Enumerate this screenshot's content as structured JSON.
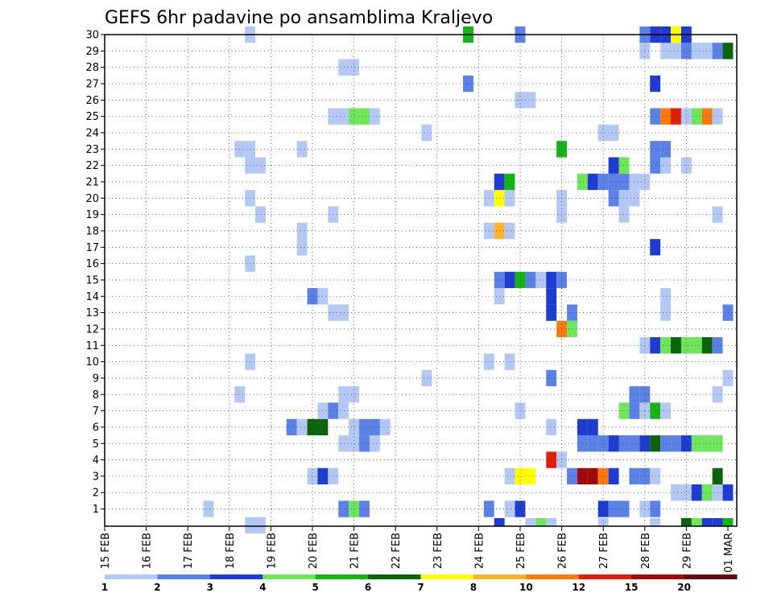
{
  "chart_data": {
    "type": "heatmap",
    "title": "GEFS 6hr padavine po ansamblima Kraljevo",
    "y_ticks": [
      "1",
      "2",
      "3",
      "4",
      "5",
      "6",
      "7",
      "8",
      "9",
      "10",
      "11",
      "12",
      "13",
      "14",
      "15",
      "16",
      "17",
      "18",
      "19",
      "20",
      "21",
      "22",
      "23",
      "24",
      "25",
      "26",
      "27",
      "28",
      "29",
      "30"
    ],
    "x_ticks": [
      "15 FEB",
      "16 FEB",
      "17 FEB",
      "18 FEB",
      "19 FEB",
      "20 FEB",
      "21 FEB",
      "22 FEB",
      "23 FEB",
      "24 FEB",
      "25 FEB",
      "26 FEB",
      "27 FEB",
      "28 FEB",
      "29 FEB",
      "01 MAR"
    ],
    "legend": {
      "labels": [
        "1",
        "2",
        "3",
        "4",
        "5",
        "6",
        "7",
        "8",
        "10",
        "12",
        "15",
        "20"
      ],
      "colors": [
        "#b4c8f5",
        "#5a82e6",
        "#1e3cd2",
        "#6ee65a",
        "#14b414",
        "#0a640a",
        "#ffff00",
        "#ffb428",
        "#ff780a",
        "#e11e0a",
        "#a00a0a",
        "#640a14"
      ]
    },
    "cells": [
      [
        0,
        18.5,
        1
      ],
      [
        0,
        18.75,
        1
      ],
      [
        1,
        17.5,
        1
      ],
      [
        1,
        20.75,
        2
      ],
      [
        1,
        21.0,
        4
      ],
      [
        1,
        21.25,
        2
      ],
      [
        1,
        24.25,
        2
      ],
      [
        1,
        24.75,
        1
      ],
      [
        1,
        25.0,
        3
      ],
      [
        1,
        27.0,
        3
      ],
      [
        1,
        27.25,
        2
      ],
      [
        1,
        27.5,
        2
      ],
      [
        1,
        28.0,
        1
      ],
      [
        1,
        28.25,
        2
      ],
      [
        2,
        28.75,
        1
      ],
      [
        2,
        29.0,
        1
      ],
      [
        2,
        29.25,
        3
      ],
      [
        2,
        29.5,
        4
      ],
      [
        2,
        29.75,
        1
      ],
      [
        2,
        30.0,
        3
      ],
      [
        3,
        20.0,
        1
      ],
      [
        3,
        20.25,
        3
      ],
      [
        3,
        20.5,
        1
      ],
      [
        3,
        24.75,
        1
      ],
      [
        3,
        25.0,
        7
      ],
      [
        3,
        25.25,
        7
      ],
      [
        3,
        26.25,
        2
      ],
      [
        3,
        26.5,
        11
      ],
      [
        3,
        26.75,
        11
      ],
      [
        3,
        27.0,
        9
      ],
      [
        3,
        27.25,
        3
      ],
      [
        3,
        27.75,
        2
      ],
      [
        3,
        28.0,
        2
      ],
      [
        3,
        28.25,
        1
      ],
      [
        3,
        29.75,
        6
      ],
      [
        4,
        25.75,
        10
      ],
      [
        4,
        26.0,
        1
      ],
      [
        5,
        20.75,
        1
      ],
      [
        5,
        21.0,
        1
      ],
      [
        5,
        21.25,
        2
      ],
      [
        5,
        21.5,
        1
      ],
      [
        5,
        26.5,
        2
      ],
      [
        5,
        26.75,
        2
      ],
      [
        5,
        27.0,
        2
      ],
      [
        5,
        27.25,
        3
      ],
      [
        5,
        27.5,
        2
      ],
      [
        5,
        27.75,
        2
      ],
      [
        5,
        28.0,
        3
      ],
      [
        5,
        28.25,
        6
      ],
      [
        5,
        28.5,
        2
      ],
      [
        5,
        28.75,
        2
      ],
      [
        5,
        29.0,
        3
      ],
      [
        5,
        29.25,
        4
      ],
      [
        5,
        29.5,
        4
      ],
      [
        5,
        29.75,
        4
      ],
      [
        6,
        19.5,
        2
      ],
      [
        6,
        19.75,
        1
      ],
      [
        6,
        20.0,
        6
      ],
      [
        6,
        20.25,
        6
      ],
      [
        6,
        21.0,
        1
      ],
      [
        6,
        21.25,
        2
      ],
      [
        6,
        21.5,
        2
      ],
      [
        6,
        21.75,
        1
      ],
      [
        6,
        25.75,
        1
      ],
      [
        6,
        26.5,
        3
      ],
      [
        6,
        26.75,
        3
      ],
      [
        7,
        20.25,
        1
      ],
      [
        7,
        20.5,
        2
      ],
      [
        7,
        20.75,
        1
      ],
      [
        7,
        25.0,
        1
      ],
      [
        7,
        27.5,
        4
      ],
      [
        7,
        27.75,
        2
      ],
      [
        7,
        28.0,
        1
      ],
      [
        7,
        28.25,
        5
      ],
      [
        7,
        28.5,
        1
      ],
      [
        8,
        18.25,
        1
      ],
      [
        8,
        20.75,
        1
      ],
      [
        8,
        21.0,
        1
      ],
      [
        8,
        27.75,
        2
      ],
      [
        8,
        28.0,
        2
      ],
      [
        8,
        29.75,
        1
      ],
      [
        9,
        22.75,
        1
      ],
      [
        9,
        25.75,
        2
      ],
      [
        9,
        30.0,
        1
      ],
      [
        10,
        18.5,
        1
      ],
      [
        10,
        24.25,
        1
      ],
      [
        10,
        24.75,
        1
      ],
      [
        11,
        28.0,
        1
      ],
      [
        11,
        28.25,
        3
      ],
      [
        11,
        28.5,
        4
      ],
      [
        11,
        28.75,
        6
      ],
      [
        11,
        29.0,
        4
      ],
      [
        11,
        29.25,
        4
      ],
      [
        11,
        29.5,
        6
      ],
      [
        11,
        29.75,
        2
      ],
      [
        12,
        26.0,
        9
      ],
      [
        12,
        26.25,
        4
      ],
      [
        13,
        20.5,
        1
      ],
      [
        13,
        20.75,
        1
      ],
      [
        13,
        25.75,
        3
      ],
      [
        13,
        26.25,
        2
      ],
      [
        13,
        28.5,
        1
      ],
      [
        13,
        30.0,
        2
      ],
      [
        14,
        20.0,
        2
      ],
      [
        14,
        20.25,
        1
      ],
      [
        14,
        24.5,
        1
      ],
      [
        14,
        25.75,
        3
      ],
      [
        14,
        28.5,
        1
      ],
      [
        15,
        24.5,
        2
      ],
      [
        15,
        24.75,
        3
      ],
      [
        15,
        25.0,
        5
      ],
      [
        15,
        25.25,
        2
      ],
      [
        15,
        25.5,
        1
      ],
      [
        15,
        25.75,
        3
      ],
      [
        15,
        26.0,
        2
      ],
      [
        16,
        18.5,
        1
      ],
      [
        17,
        19.75,
        1
      ],
      [
        17,
        28.25,
        3
      ],
      [
        18,
        19.75,
        1
      ],
      [
        18,
        24.25,
        1
      ],
      [
        18,
        24.5,
        8
      ],
      [
        18,
        24.75,
        1
      ],
      [
        19,
        18.75,
        1
      ],
      [
        19,
        20.5,
        1
      ],
      [
        19,
        26.0,
        1
      ],
      [
        19,
        27.5,
        1
      ],
      [
        19,
        29.75,
        1
      ],
      [
        20,
        18.5,
        1
      ],
      [
        20,
        24.25,
        1
      ],
      [
        20,
        24.5,
        7
      ],
      [
        20,
        24.75,
        1
      ],
      [
        20,
        26.0,
        1
      ],
      [
        20,
        27.25,
        2
      ],
      [
        20,
        27.5,
        1
      ],
      [
        20,
        27.75,
        1
      ],
      [
        21,
        24.5,
        3
      ],
      [
        21,
        24.75,
        5
      ],
      [
        21,
        26.5,
        4
      ],
      [
        21,
        26.75,
        3
      ],
      [
        21,
        27.0,
        2
      ],
      [
        21,
        27.25,
        2
      ],
      [
        21,
        27.5,
        2
      ],
      [
        21,
        27.75,
        1
      ],
      [
        21,
        28.0,
        1
      ],
      [
        22,
        18.5,
        1
      ],
      [
        22,
        18.75,
        1
      ],
      [
        22,
        27.25,
        3
      ],
      [
        22,
        27.5,
        4
      ],
      [
        22,
        28.25,
        2
      ],
      [
        22,
        28.5,
        1
      ],
      [
        22,
        29.0,
        1
      ],
      [
        23,
        18.25,
        1
      ],
      [
        23,
        18.5,
        1
      ],
      [
        23,
        19.75,
        1
      ],
      [
        23,
        26.0,
        5
      ],
      [
        23,
        28.25,
        2
      ],
      [
        23,
        28.5,
        2
      ],
      [
        24,
        22.75,
        1
      ],
      [
        24,
        27.0,
        1
      ],
      [
        24,
        27.25,
        1
      ],
      [
        25,
        20.5,
        1
      ],
      [
        25,
        20.75,
        1
      ],
      [
        25,
        21.0,
        4
      ],
      [
        25,
        21.25,
        4
      ],
      [
        25,
        21.5,
        1
      ],
      [
        25,
        28.25,
        2
      ],
      [
        25,
        28.5,
        9
      ],
      [
        25,
        28.75,
        10
      ],
      [
        25,
        29.0,
        1
      ],
      [
        25,
        29.25,
        4
      ],
      [
        25,
        29.5,
        9
      ],
      [
        25,
        29.75,
        1
      ],
      [
        26,
        25.0,
        1
      ],
      [
        26,
        25.25,
        1
      ],
      [
        27,
        23.75,
        2
      ],
      [
        27,
        28.25,
        3
      ],
      [
        28,
        20.75,
        1
      ],
      [
        28,
        21.0,
        1
      ],
      [
        29,
        28.0,
        1
      ],
      [
        29,
        28.5,
        1
      ],
      [
        29,
        28.75,
        1
      ],
      [
        29,
        29.0,
        2
      ],
      [
        29,
        29.25,
        1
      ],
      [
        29,
        29.5,
        1
      ],
      [
        29,
        29.75,
        2
      ],
      [
        29,
        30.0,
        6
      ],
      [
        30,
        18.5,
        1
      ],
      [
        30,
        23.75,
        5
      ],
      [
        30,
        25.0,
        2
      ],
      [
        30,
        28.0,
        2
      ],
      [
        30,
        28.25,
        3
      ],
      [
        30,
        28.5,
        3
      ],
      [
        30,
        28.75,
        7
      ],
      [
        30,
        29.0,
        3
      ],
      [
        -1,
        24.5,
        3
      ],
      [
        -1,
        25.25,
        1
      ],
      [
        -1,
        25.5,
        4
      ],
      [
        -1,
        25.75,
        1
      ],
      [
        -1,
        27.0,
        1
      ],
      [
        -1,
        28.25,
        1
      ],
      [
        -1,
        29.0,
        6
      ],
      [
        -1,
        29.25,
        4
      ],
      [
        -1,
        29.5,
        3
      ],
      [
        -1,
        29.75,
        3
      ],
      [
        -1,
        30.0,
        5
      ]
    ]
  }
}
